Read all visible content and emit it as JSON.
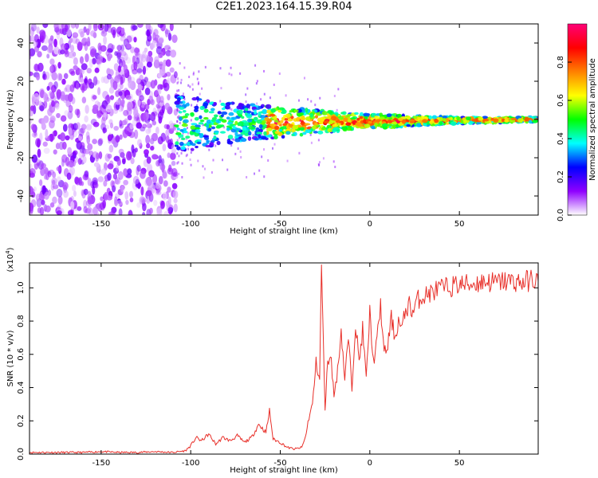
{
  "title": "C2E1.2023.164.15.39.R04",
  "chart_data": [
    {
      "type": "heatmap",
      "xlabel": "Height of straight line (km)",
      "ylabel": "Frequency (Hz)",
      "xlim": [
        -190,
        94
      ],
      "ylim": [
        -50,
        50
      ],
      "xticks": [
        "-150",
        "-100",
        "-50",
        "0",
        "50"
      ],
      "xtick_values": [
        -150,
        -100,
        -50,
        0,
        50
      ],
      "yticks": [
        "40",
        "20",
        "0",
        "-20",
        "-40"
      ],
      "ytick_values": [
        40,
        20,
        0,
        -20,
        -40
      ],
      "colorbar": {
        "label": "Normalized spectral amplitude",
        "ticks": [
          "0.0",
          "0.2",
          "0.4",
          "0.6",
          "0.8"
        ],
        "tick_values": [
          0.0,
          0.2,
          0.4,
          0.6,
          0.8
        ],
        "colors": [
          "#ffffff",
          "#8f00ff",
          "#0000ff",
          "#00ffff",
          "#00ff00",
          "#ffff00",
          "#ff8000",
          "#ff0000",
          "#ff0077"
        ]
      },
      "features": [
        {
          "name": "broadband noise",
          "x_range": [
            -190,
            -108
          ],
          "freq_range": [
            -50,
            50
          ],
          "amplitude": 0.12
        },
        {
          "name": "narrowband signal",
          "x_range": [
            -108,
            94
          ],
          "center_freq_hz": [
            -2,
            0
          ],
          "amplitude_range": [
            0.25,
            0.95
          ]
        }
      ]
    },
    {
      "type": "line",
      "xlabel": "Height of straight line (km)",
      "ylabel": "SNR (10 * v/v)",
      "multiplier": "(x10",
      "multiplier_exp": "4",
      "multiplier_close": ")",
      "xlim": [
        -190,
        94
      ],
      "ylim": [
        0,
        1.15
      ],
      "xticks": [
        "-150",
        "-100",
        "-50",
        "0",
        "50"
      ],
      "xtick_values": [
        -150,
        -100,
        -50,
        0,
        50
      ],
      "yticks": [
        "0.0",
        "0.2",
        "0.4",
        "0.6",
        "0.8",
        "1.0"
      ],
      "ytick_values": [
        0.0,
        0.2,
        0.4,
        0.6,
        0.8,
        1.0
      ],
      "color": "#e8302a",
      "series": [
        {
          "x": [
            -190,
            -180,
            -170,
            -160,
            -150,
            -140,
            -130,
            -120,
            -110,
            -103,
            -100,
            -97,
            -94,
            -90,
            -86,
            -82,
            -78,
            -74,
            -70,
            -66,
            -62,
            -58,
            -56,
            -54,
            -50,
            -46,
            -42,
            -38,
            -36,
            -34,
            -32,
            -30,
            -28,
            -27,
            -26,
            -25,
            -24,
            -22,
            -20,
            -18,
            -16,
            -14,
            -12,
            -10,
            -8,
            -6,
            -4,
            -2,
            0,
            2,
            4,
            6,
            8,
            10,
            12,
            14,
            16,
            18,
            20,
            22,
            24,
            26,
            28,
            30,
            34,
            38,
            42,
            46,
            50,
            55,
            60,
            65,
            70,
            75,
            80,
            85,
            90,
            94
          ],
          "y": [
            0.01,
            0.01,
            0.01,
            0.01,
            0.015,
            0.01,
            0.01,
            0.015,
            0.01,
            0.02,
            0.05,
            0.1,
            0.08,
            0.12,
            0.06,
            0.1,
            0.08,
            0.11,
            0.07,
            0.1,
            0.18,
            0.13,
            0.26,
            0.09,
            0.07,
            0.04,
            0.03,
            0.04,
            0.1,
            0.22,
            0.3,
            0.55,
            0.45,
            1.15,
            0.7,
            0.25,
            0.5,
            0.62,
            0.35,
            0.5,
            0.75,
            0.45,
            0.7,
            0.4,
            0.8,
            0.55,
            0.75,
            0.45,
            0.85,
            0.55,
            0.68,
            0.9,
            0.6,
            0.65,
            0.82,
            0.7,
            0.8,
            0.75,
            0.87,
            0.9,
            0.85,
            0.92,
            0.94,
            0.95,
            0.97,
            0.99,
            1.0,
            1.01,
            1.02,
            1.02,
            1.03,
            1.04,
            1.03,
            1.04,
            1.04,
            1.03,
            1.05,
            1.04
          ]
        }
      ]
    }
  ]
}
